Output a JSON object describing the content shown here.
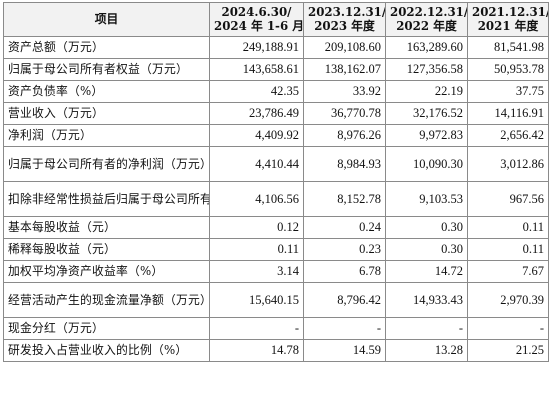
{
  "table": {
    "headers": [
      {
        "line1": "项目",
        "line2": ""
      },
      {
        "line1": "2024.6.30/",
        "line2": "2024 年 1-6 月"
      },
      {
        "line1": "2023.12.31/",
        "line2": "2023 年度"
      },
      {
        "line1": "2022.12.31/",
        "line2": "2022 年度"
      },
      {
        "line1": "2021.12.31/",
        "line2": "2021 年度"
      }
    ],
    "rows": [
      {
        "label": "资产总额（万元）",
        "values": [
          "249,188.91",
          "209,108.60",
          "163,289.60",
          "81,541.98"
        ]
      },
      {
        "label": "归属于母公司所有者权益（万元）",
        "values": [
          "143,658.61",
          "138,162.07",
          "127,356.58",
          "50,953.78"
        ]
      },
      {
        "label": "资产负债率（%）",
        "values": [
          "42.35",
          "33.92",
          "22.19",
          "37.75"
        ]
      },
      {
        "label": "营业收入（万元）",
        "values": [
          "23,786.49",
          "36,770.78",
          "32,176.52",
          "14,116.91"
        ]
      },
      {
        "label": "净利润（万元）",
        "values": [
          "4,409.92",
          "8,976.26",
          "9,972.83",
          "2,656.42"
        ]
      },
      {
        "label": "归属于母公司所有者的净利润（万元）",
        "values": [
          "4,410.44",
          "8,984.93",
          "10,090.30",
          "3,012.86"
        ]
      },
      {
        "label": "扣除非经常性损益后归属于母公司所有者的净利润（万元）",
        "values": [
          "4,106.56",
          "8,152.78",
          "9,103.53",
          "967.56"
        ]
      },
      {
        "label": "基本每股收益（元）",
        "values": [
          "0.12",
          "0.24",
          "0.30",
          "0.11"
        ]
      },
      {
        "label": "稀释每股收益（元）",
        "values": [
          "0.11",
          "0.23",
          "0.30",
          "0.11"
        ]
      },
      {
        "label": "加权平均净资产收益率（%）",
        "values": [
          "3.14",
          "6.78",
          "14.72",
          "7.67"
        ]
      },
      {
        "label": "经营活动产生的现金流量净额（万元）",
        "values": [
          "15,640.15",
          "8,796.42",
          "14,933.43",
          "2,970.39"
        ]
      },
      {
        "label": "现金分红（万元）",
        "values": [
          "-",
          "-",
          "-",
          "-"
        ]
      },
      {
        "label": "研发投入占营业收入的比例（%）",
        "values": [
          "14.78",
          "14.59",
          "13.28",
          "21.25"
        ]
      }
    ]
  }
}
